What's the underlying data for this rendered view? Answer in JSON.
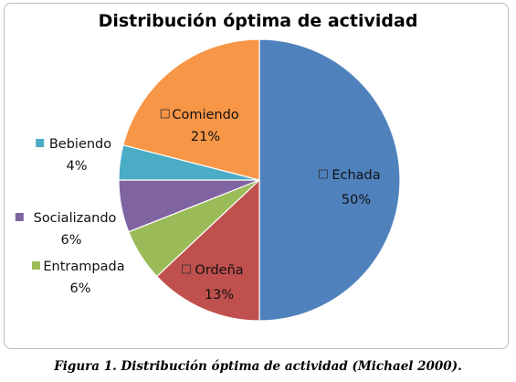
{
  "chart_data": {
    "type": "pie",
    "title": "Distribución óptima de actividad",
    "slices": [
      {
        "label": "Echada",
        "value": 50,
        "value_label": "50%",
        "color": "#4f81bd"
      },
      {
        "label": "Ordeña",
        "value": 13,
        "value_label": "13%",
        "color": "#c0504d"
      },
      {
        "label": "Entrampada",
        "value": 6,
        "value_label": "6%",
        "color": "#9bbb59"
      },
      {
        "label": "Socializando",
        "value": 6,
        "value_label": "6%",
        "color": "#8064a2"
      },
      {
        "label": "Bebiendo",
        "value": 4,
        "value_label": "4%",
        "color": "#4bacc6"
      },
      {
        "label": "Comiendo",
        "value": 21,
        "value_label": "21%",
        "color": "#f79646"
      }
    ],
    "start_angle": "12 o'clock",
    "direction": "clockwise"
  },
  "caption": "Figura 1. Distribución óptima de actividad (Michael 2000)."
}
